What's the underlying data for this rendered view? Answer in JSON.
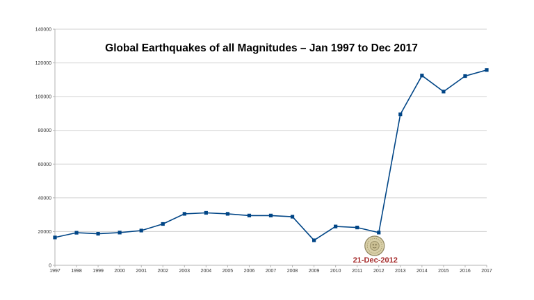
{
  "chart_data": {
    "type": "line",
    "title": "Global Earthquakes of all Magnitudes – Jan 1997 to Dec 2017",
    "xlabel": "",
    "ylabel": "",
    "categories": [
      "1997",
      "1998",
      "1999",
      "2000",
      "2001",
      "2002",
      "2003",
      "2004",
      "2005",
      "2006",
      "2007",
      "2008",
      "2009",
      "2010",
      "2011",
      "2012",
      "2013",
      "2014",
      "2015",
      "2016",
      "2017"
    ],
    "series": [
      {
        "values": [
          16500,
          19300,
          18700,
          19400,
          20600,
          24500,
          30500,
          31100,
          30500,
          29500,
          29500,
          28800,
          14800,
          23000,
          22400,
          19400,
          89500,
          112500,
          103000,
          112200,
          115800
        ]
      }
    ],
    "ylim": [
      0,
      140000
    ],
    "yticks": [
      "0",
      "20000",
      "40000",
      "60000",
      "80000",
      "100000",
      "120000",
      "140000"
    ],
    "grid": true,
    "legend": "none",
    "annotation": {
      "label": "21-Dec-2012",
      "icon": "mayan-calendar-icon",
      "category": "2012"
    },
    "colors": {
      "line": "#004586",
      "grid": "#d0d0d0",
      "axis": "#b3b3b3",
      "annotation": "#a52a2a"
    }
  }
}
